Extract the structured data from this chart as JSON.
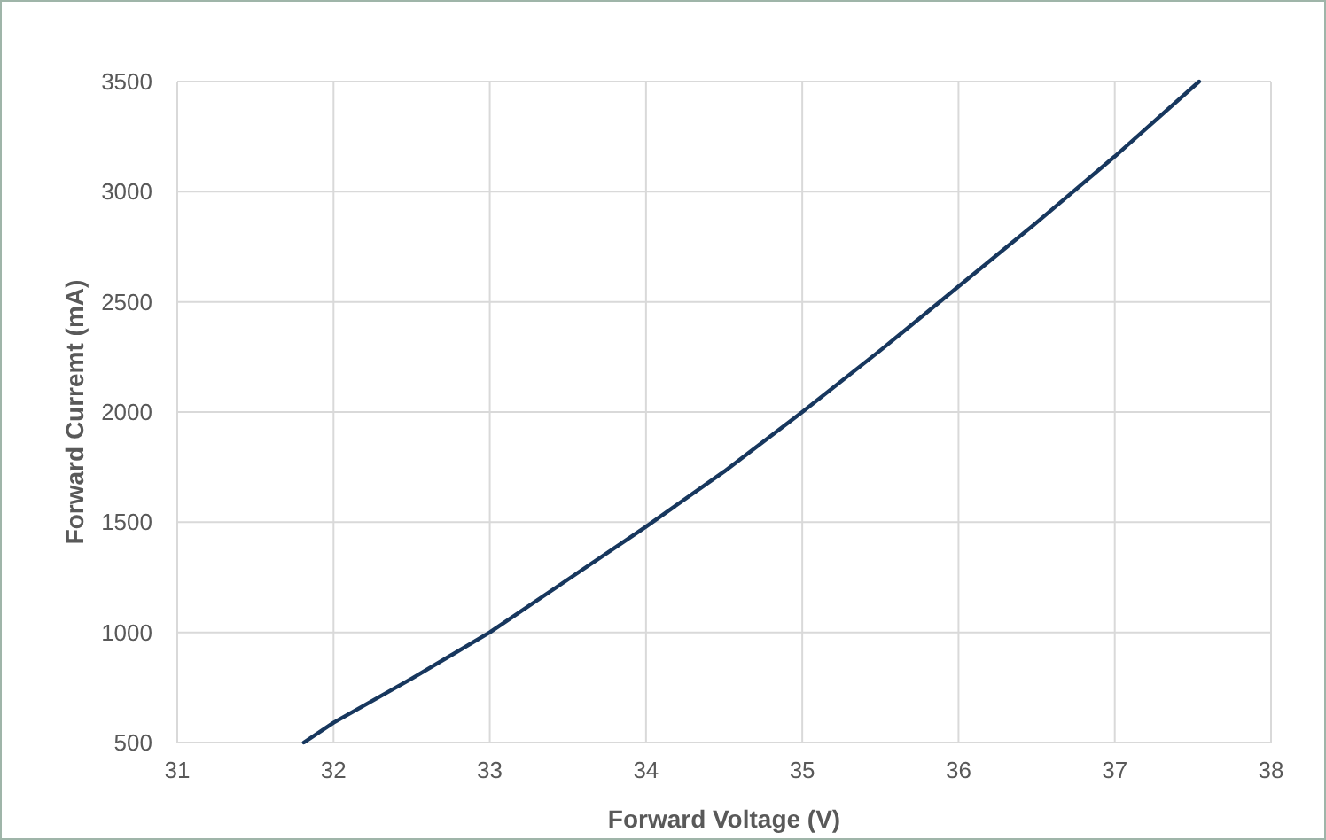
{
  "chart_data": {
    "type": "line",
    "xlabel": "Forward Voltage (V)",
    "ylabel": "Forward Curremt (mA)",
    "x": [
      31.81,
      32,
      32.5,
      33,
      33.5,
      34,
      34.5,
      35,
      35.5,
      36,
      36.5,
      37,
      37.54
    ],
    "series": [
      {
        "color": "#17375e",
        "values": [
          500,
          590,
          790,
          1000,
          1240,
          1480,
          1730,
          2000,
          2280,
          2570,
          2860,
          3160,
          3500
        ]
      }
    ],
    "xlim": [
      31,
      38
    ],
    "xticks": [
      31,
      32,
      33,
      34,
      35,
      36,
      37,
      38
    ],
    "ylim": [
      500,
      3500
    ],
    "yticks": [
      500,
      1000,
      1500,
      2000,
      2500,
      3000,
      3500
    ],
    "grid": true,
    "marker": "none",
    "line_style": "solid"
  }
}
